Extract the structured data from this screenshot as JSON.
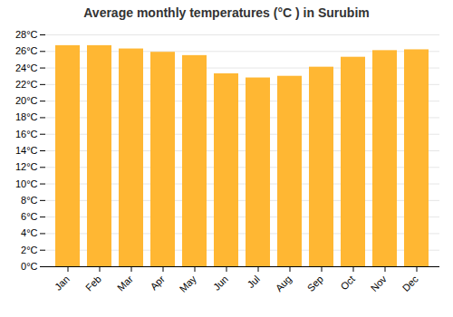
{
  "chart_data": {
    "type": "bar",
    "title": "Average monthly temperatures (°C ) in Surubim",
    "categories": [
      "Jan",
      "Feb",
      "Mar",
      "Apr",
      "May",
      "Jun",
      "Jul",
      "Aug",
      "Sep",
      "Oct",
      "Nov",
      "Dec"
    ],
    "values": [
      26.7,
      26.7,
      26.3,
      25.9,
      25.5,
      23.3,
      22.8,
      23.0,
      24.1,
      25.3,
      26.1,
      26.2
    ],
    "color": "#FFB733",
    "ylim": [
      0,
      28
    ],
    "yticks": [
      {
        "value": 0,
        "label": "0°C"
      },
      {
        "value": 2,
        "label": "2°C"
      },
      {
        "value": 4,
        "label": "4°C"
      },
      {
        "value": 6,
        "label": "6°C"
      },
      {
        "value": 8,
        "label": "8°C"
      },
      {
        "value": 10,
        "label": "10°C"
      },
      {
        "value": 12,
        "label": "12°C"
      },
      {
        "value": 14,
        "label": "14°C"
      },
      {
        "value": 16,
        "label": "16°C"
      },
      {
        "value": 18,
        "label": "18°C"
      },
      {
        "value": 20,
        "label": "20°C"
      },
      {
        "value": 22,
        "label": "22°C"
      },
      {
        "value": 24,
        "label": "24°C"
      },
      {
        "value": 26,
        "label": "26°C"
      },
      {
        "value": 28,
        "label": "28°C"
      }
    ],
    "grid": true
  }
}
